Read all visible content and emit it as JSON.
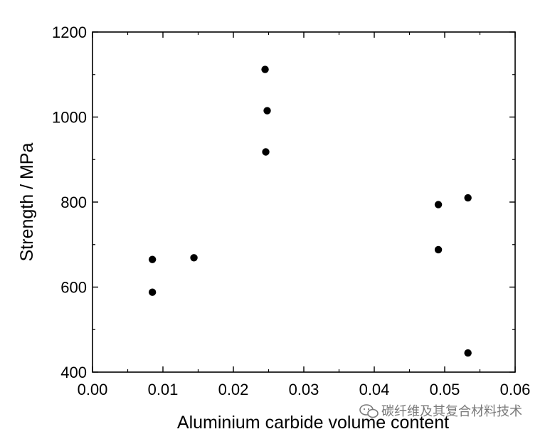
{
  "chart_data": {
    "type": "scatter",
    "title": "",
    "xlabel": "Aluminium carbide volume content",
    "ylabel": "Strength / MPa",
    "xlim": [
      0.0,
      0.06
    ],
    "ylim": [
      400,
      1200
    ],
    "x_ticks": [
      0.0,
      0.01,
      0.02,
      0.03,
      0.04,
      0.05,
      0.06
    ],
    "x_tick_labels": [
      "0.00",
      "0.01",
      "0.02",
      "0.03",
      "0.04",
      "0.05",
      "0.06"
    ],
    "y_ticks": [
      400,
      600,
      800,
      1000,
      1200
    ],
    "y_tick_labels": [
      "400",
      "600",
      "800",
      "1000",
      "1200"
    ],
    "grid": false,
    "legend": "none",
    "marker_color": "#000000",
    "series": [
      {
        "points": [
          {
            "x": 0.0085,
            "y": 665
          },
          {
            "x": 0.0085,
            "y": 588
          },
          {
            "x": 0.0144,
            "y": 669
          },
          {
            "x": 0.0245,
            "y": 1112
          },
          {
            "x": 0.0248,
            "y": 1015
          },
          {
            "x": 0.0246,
            "y": 918
          },
          {
            "x": 0.0491,
            "y": 794
          },
          {
            "x": 0.0491,
            "y": 688
          },
          {
            "x": 0.0533,
            "y": 810
          },
          {
            "x": 0.0533,
            "y": 445
          }
        ]
      }
    ]
  },
  "watermark": {
    "icon": "wechat-icon",
    "text": "碳纤维及其复合材料技术",
    "color": "#7a7a7a"
  }
}
